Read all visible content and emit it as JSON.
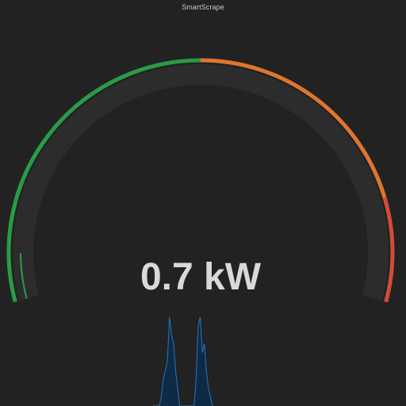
{
  "panel": {
    "title": "SmartScrape"
  },
  "gauge": {
    "value": 0.7,
    "display_value": "0.7 kW",
    "unit": "kW",
    "min": 0,
    "max": 10,
    "thresholds": [
      {
        "from": 0,
        "to": 5,
        "color": "#299c46"
      },
      {
        "from": 5,
        "to": 8.5,
        "color": "#e0752d"
      },
      {
        "from": 8.5,
        "to": 10,
        "color": "#d44a3a"
      }
    ],
    "track_color": "#2c2c2c"
  },
  "sparkline": {
    "color": "#1f78c1",
    "fill": "#0f2a44",
    "values": [
      0,
      0,
      0,
      0,
      0.1,
      0.3,
      0.4,
      0.5,
      1.0,
      0.8,
      0.7,
      0.4,
      0.2,
      0,
      0,
      0,
      0,
      0,
      0,
      0,
      0,
      0.3,
      0.9,
      1.0,
      0.6,
      0.7,
      0.4,
      0.2,
      0.1,
      0
    ]
  }
}
